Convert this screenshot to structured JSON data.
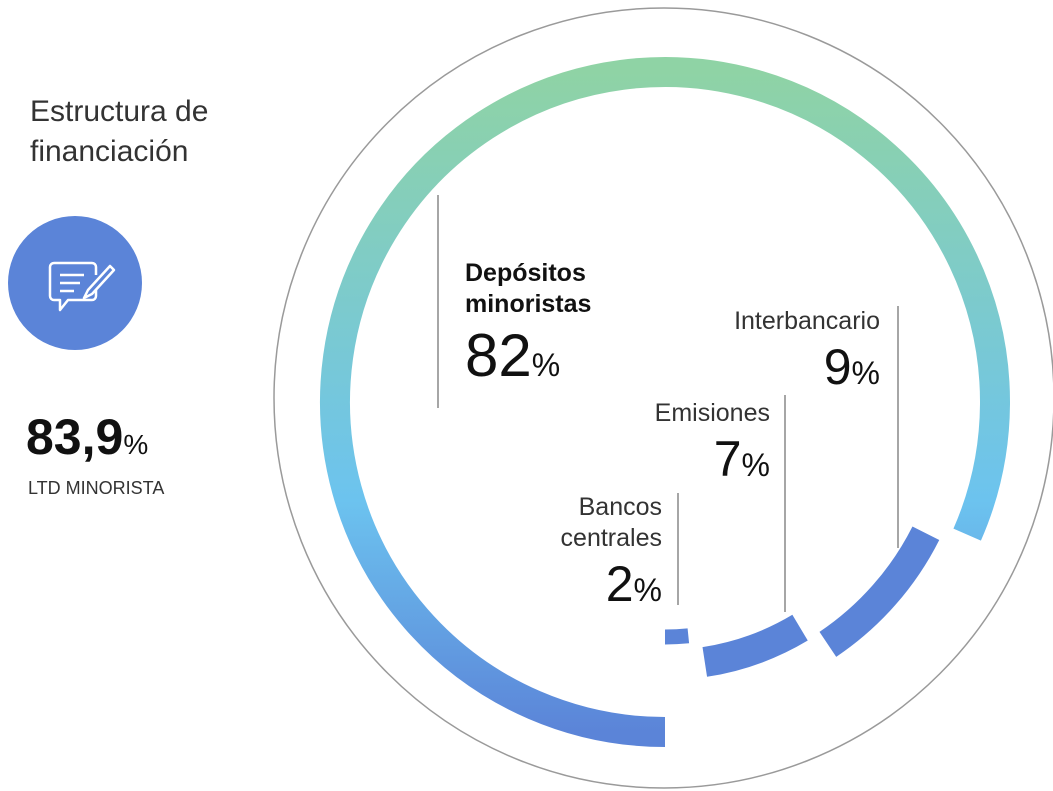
{
  "title": "Estructura de financiación",
  "kpi": {
    "value": "83,9",
    "unit": "%",
    "label": "LTD MINORISTA"
  },
  "chart_data": {
    "type": "donut",
    "categories": [
      "Depósitos minoristas",
      "Interbancario",
      "Emisiones",
      "Bancos centrales"
    ],
    "values": [
      82,
      9,
      7,
      2
    ],
    "unit": "%",
    "colors": [
      "#8fd3a5",
      "#6cc3ef",
      "#5b84d8",
      "#5b84d8"
    ]
  }
}
